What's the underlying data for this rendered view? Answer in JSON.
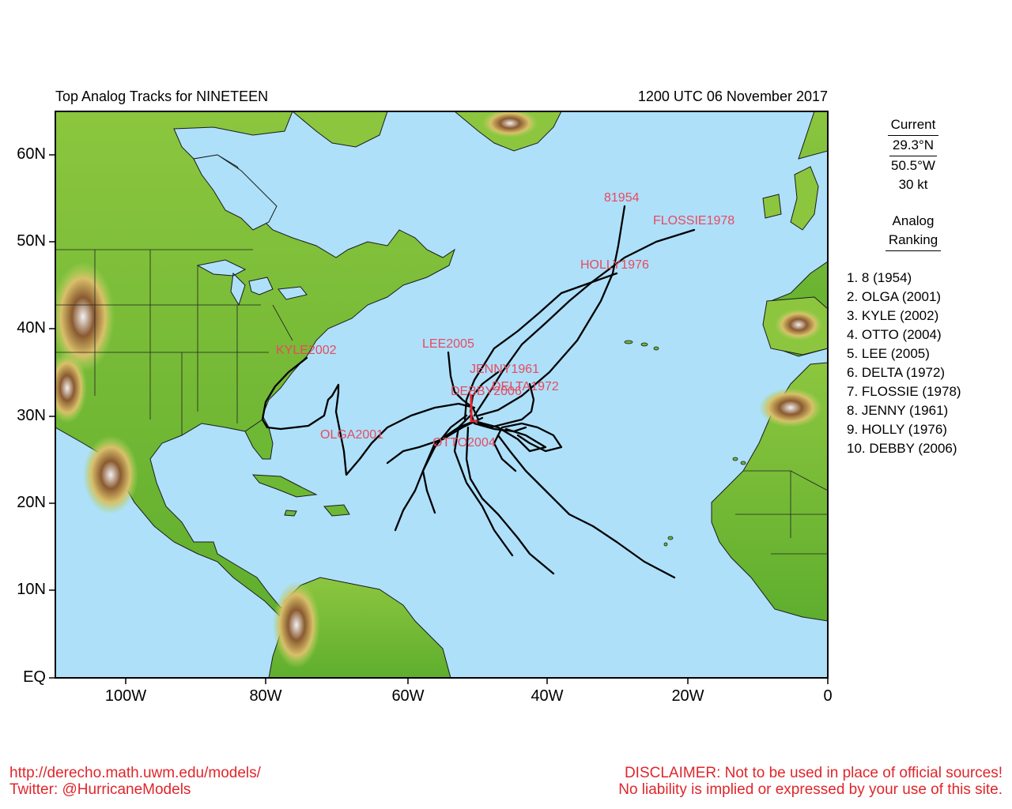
{
  "header": {
    "title_left": "Top Analog Tracks for NINETEEN",
    "title_right": "1200 UTC 06 November 2017"
  },
  "axes": {
    "lat_labels": [
      "60N",
      "50N",
      "40N",
      "30N",
      "20N",
      "10N",
      "EQ"
    ],
    "lon_labels": [
      "100W",
      "80W",
      "60W",
      "40W",
      "20W",
      "0"
    ]
  },
  "current": {
    "heading": "Current",
    "lat": "29.3°N",
    "lon": "50.5°W",
    "wind": "30 kt"
  },
  "ranking": {
    "heading_line1": "Analog",
    "heading_line2": "Ranking",
    "items": [
      "1.  8 (1954)",
      "2.  OLGA (2001)",
      "3.  KYLE (2002)",
      "4.  OTTO (2004)",
      "5.  LEE (2005)",
      "6.  DELTA (1972)",
      "7.  FLOSSIE (1978)",
      "8.  JENNY (1961)",
      "9.  HOLLY (1976)",
      "10. DEBBY (2006)"
    ]
  },
  "track_labels": [
    {
      "key": "t8",
      "text": "81954"
    },
    {
      "key": "flossie",
      "text": "FLOSSIE1978"
    },
    {
      "key": "holly",
      "text": "HOLLY1976"
    },
    {
      "key": "lee",
      "text": "LEE2005"
    },
    {
      "key": "kyle",
      "text": "KYLE2002"
    },
    {
      "key": "jenny",
      "text": "JENNY1961"
    },
    {
      "key": "delta",
      "text": "DELTA1972"
    },
    {
      "key": "debby",
      "text": "DEBBY2006"
    },
    {
      "key": "olga",
      "text": "OLGA2001"
    },
    {
      "key": "otto",
      "text": "OTTO2004"
    }
  ],
  "footer": {
    "url": "http://derecho.math.uwm.edu/models/",
    "twitter": "Twitter: @HurricaneModels",
    "disclaimer1": "DISCLAIMER: Not to be used in place of official sources!",
    "disclaimer2": "No liability is implied or expressed by your use of this site."
  },
  "colors": {
    "ocean": "#aee0fa",
    "land_low": "#5fae2e",
    "land_mid": "#9ecf4a",
    "land_high": "#d9c06a",
    "mountain": "#7a5230",
    "ice": "#f2f0f2",
    "track": "#000000",
    "label": "#e84a5f",
    "current_marker": "#e0262b"
  }
}
